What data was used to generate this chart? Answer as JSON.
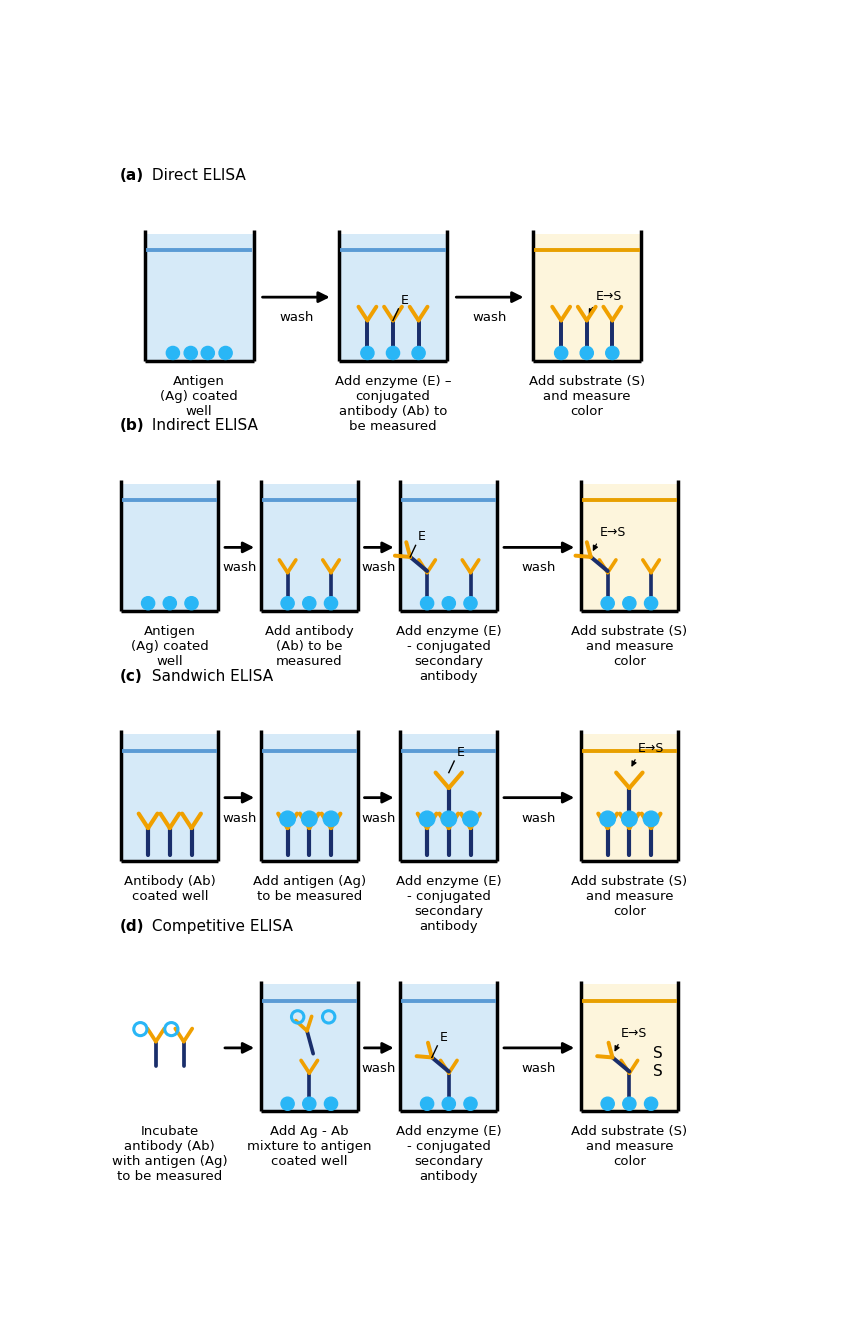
{
  "colors": {
    "light_blue_fill": "#d6eaf8",
    "light_yellow_fill": "#fdf5dc",
    "dark_navy": "#1a2e6b",
    "orange_arm": "#f0a000",
    "cyan_circle": "#29b6f6",
    "water_line_blue": "#5b9bd5",
    "water_line_yellow": "#e8a000",
    "bg": "#ffffff"
  },
  "sections": [
    {
      "label_bold": "(a)",
      "label_rest": " Direct ELISA",
      "steps": [
        {
          "caption": "Antigen\n(Ag) coated\nwell",
          "fill": "blue",
          "ab_type": "antigens_only"
        },
        {
          "caption": "Add enzyme (E) –\nconjugated\nantibody (Ab) to\nbe measured",
          "fill": "blue",
          "ab_type": "direct_ab"
        },
        {
          "caption": "Add substrate (S)\nand measure\ncolor",
          "fill": "yellow",
          "ab_type": "direct_ab_es"
        }
      ]
    },
    {
      "label_bold": "(b)",
      "label_rest": " Indirect ELISA",
      "steps": [
        {
          "caption": "Antigen\n(Ag) coated\nwell",
          "fill": "blue",
          "ab_type": "antigens_only"
        },
        {
          "caption": "Add antibody\n(Ab) to be\nmeasured",
          "fill": "blue",
          "ab_type": "primary_ab"
        },
        {
          "caption": "Add enzyme (E)\n- conjugated\nsecondary\nantibody",
          "fill": "blue",
          "ab_type": "indirect_secondary"
        },
        {
          "caption": "Add substrate (S)\nand measure\ncolor",
          "fill": "yellow",
          "ab_type": "indirect_secondary_es"
        }
      ]
    },
    {
      "label_bold": "(c)",
      "label_rest": " Sandwich ELISA",
      "steps": [
        {
          "caption": "Antibody (Ab)\ncoated well",
          "fill": "blue",
          "ab_type": "sandwich_ab_only"
        },
        {
          "caption": "Add antigen (Ag)\nto be measured",
          "fill": "blue",
          "ab_type": "sandwich_ag_bound"
        },
        {
          "caption": "Add enzyme (E)\n- conjugated\nsecondary\nantibody",
          "fill": "blue",
          "ab_type": "sandwich_secondary"
        },
        {
          "caption": "Add substrate (S)\nand measure\ncolor",
          "fill": "yellow",
          "ab_type": "sandwich_secondary_es"
        }
      ]
    },
    {
      "label_bold": "(d)",
      "label_rest": " Competitive ELISA",
      "steps": [
        {
          "caption": "Incubate\nantibody (Ab)\nwith antigen (Ag)\nto be measured",
          "fill": "none",
          "ab_type": "competitive_free"
        },
        {
          "caption": "Add Ag - Ab\nmixture to antigen\ncoated well",
          "fill": "blue",
          "ab_type": "competitive_well"
        },
        {
          "caption": "Add enzyme (E)\n- conjugated\nsecondary\nantibody",
          "fill": "blue",
          "ab_type": "competitive_secondary"
        },
        {
          "caption": "Add substrate (S)\nand measure\ncolor",
          "fill": "yellow",
          "ab_type": "competitive_es"
        }
      ]
    }
  ]
}
